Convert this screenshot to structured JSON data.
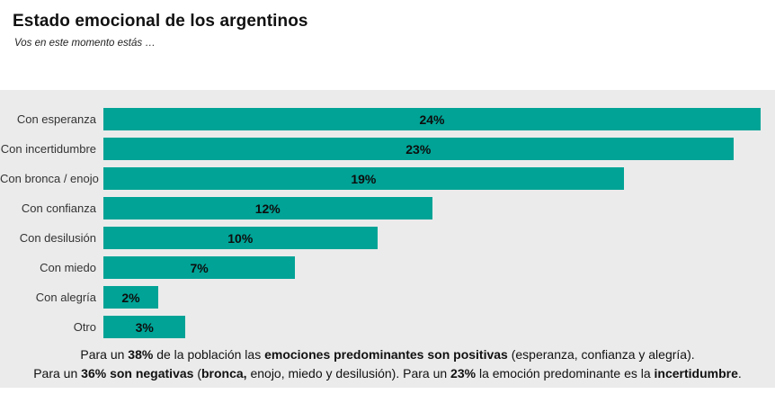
{
  "header": {
    "title": "Estado emocional de los argentinos",
    "subtitle": "Vos en este momento estás …"
  },
  "chart_data": {
    "type": "bar",
    "orientation": "horizontal",
    "title": "Estado emocional de los argentinos",
    "subtitle": "Vos en este momento estás …",
    "categories": [
      "Con esperanza",
      "Con incertidumbre",
      "Con bronca / enojo",
      "Con confianza",
      "Con desilusión",
      "Con miedo",
      "Con alegría",
      "Otro"
    ],
    "values": [
      24,
      23,
      19,
      12,
      10,
      7,
      2,
      3
    ],
    "labels": [
      "24%",
      "23%",
      "19%",
      "12%",
      "10%",
      "7%",
      "2%",
      "3%"
    ],
    "xlim": [
      0,
      24
    ],
    "bar_color": "#00a396",
    "value_label_position": "center",
    "grid": false,
    "legend": false
  },
  "footnote": {
    "line1": [
      {
        "t": "Para un ",
        "b": false
      },
      {
        "t": "38%",
        "b": true
      },
      {
        "t": " de la población las ",
        "b": false
      },
      {
        "t": "emociones predominantes son positivas",
        "b": true
      },
      {
        "t": " (esperanza, confianza y alegría).",
        "b": false
      }
    ],
    "line2": [
      {
        "t": "Para un ",
        "b": false
      },
      {
        "t": "36% son negativas",
        "b": true
      },
      {
        "t": " (",
        "b": false
      },
      {
        "t": "bronca,",
        "b": true
      },
      {
        "t": " enojo, miedo y desilusión). Para un ",
        "b": false
      },
      {
        "t": "23%",
        "b": true
      },
      {
        "t": " la emoción predominante es la ",
        "b": false
      },
      {
        "t": "incertidumbre",
        "b": true
      },
      {
        "t": ".",
        "b": false
      }
    ]
  },
  "colors": {
    "page_background": "#ffffff",
    "chart_background": "#ebebeb",
    "bar": "#00a396",
    "text": "#111111"
  }
}
